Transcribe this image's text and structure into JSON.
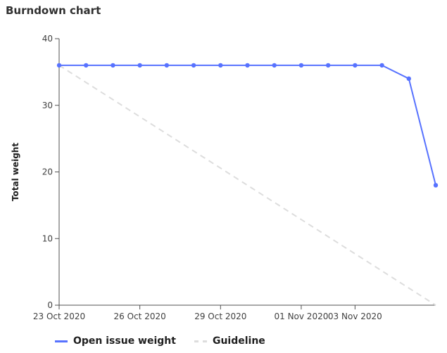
{
  "title": "Burndown chart",
  "chart_data": {
    "type": "line",
    "title": "Burndown chart",
    "xlabel": "",
    "ylabel": "Total weight",
    "ylim": [
      0,
      40
    ],
    "yticks": [
      0,
      10,
      20,
      30,
      40
    ],
    "x": [
      "23 Oct 2020",
      "24 Oct 2020",
      "25 Oct 2020",
      "26 Oct 2020",
      "27 Oct 2020",
      "28 Oct 2020",
      "29 Oct 2020",
      "30 Oct 2020",
      "31 Oct 2020",
      "01 Nov 2020",
      "02 Nov 2020",
      "03 Nov 2020",
      "04 Nov 2020",
      "05 Nov 2020",
      "06 Nov 2020"
    ],
    "xtick_labels": [
      "23 Oct 2020",
      "26 Oct 2020",
      "29 Oct 2020",
      "01 Nov 2020",
      "03 Nov 2020"
    ],
    "grid": false,
    "legend_position": "bottom-left",
    "series": [
      {
        "name": "Open issue weight",
        "style": "solid",
        "color": "#5772ff",
        "values": [
          36,
          36,
          36,
          36,
          36,
          36,
          36,
          36,
          36,
          36,
          36,
          36,
          36,
          34,
          18
        ]
      },
      {
        "name": "Guideline",
        "style": "dashed",
        "color": "#dddddd",
        "x": [
          "23 Oct 2020",
          "06 Nov 2020"
        ],
        "values": [
          36,
          0
        ]
      }
    ]
  }
}
